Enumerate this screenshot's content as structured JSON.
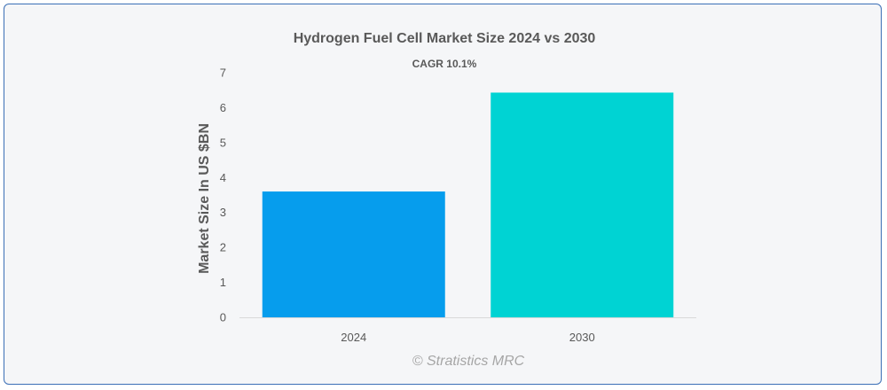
{
  "chart_data": {
    "type": "bar",
    "title": "Hydrogen Fuel Cell Market Size 2024 vs 2030",
    "subtitle": "CAGR 10.1%",
    "xlabel": "",
    "ylabel": "Market Size In US $BN",
    "categories": [
      "2024",
      "2030"
    ],
    "values": [
      3.6,
      6.43
    ],
    "colors": [
      "#069ded",
      "#00d3d3"
    ],
    "ylim": [
      0,
      7
    ],
    "yticks": [
      "0",
      "1",
      "2",
      "3",
      "4",
      "5",
      "6",
      "7"
    ],
    "grid": false,
    "legend": "none"
  },
  "footer": {
    "credit": "© Stratistics MRC"
  }
}
